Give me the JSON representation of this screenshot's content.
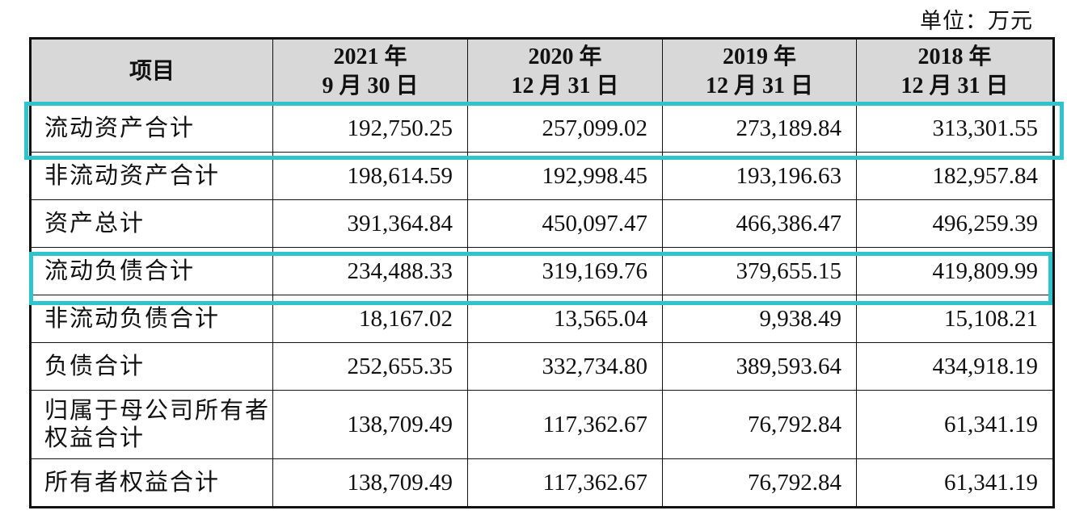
{
  "unit_label": "单位：万元",
  "header": {
    "item": "项目",
    "periods": [
      {
        "year": "2021 年",
        "date": "9 月 30 日"
      },
      {
        "year": "2020 年",
        "date": "12 月 31 日"
      },
      {
        "year": "2019 年",
        "date": "12 月 31 日"
      },
      {
        "year": "2018 年",
        "date": "12 月 31 日"
      }
    ]
  },
  "rows": [
    {
      "label": "流动资产合计",
      "values": [
        "192,750.25",
        "257,099.02",
        "273,189.84",
        "313,301.55"
      ],
      "highlighted": true
    },
    {
      "label": "非流动资产合计",
      "values": [
        "198,614.59",
        "192,998.45",
        "193,196.63",
        "182,957.84"
      ]
    },
    {
      "label": "资产总计",
      "values": [
        "391,364.84",
        "450,097.47",
        "466,386.47",
        "496,259.39"
      ]
    },
    {
      "label": "流动负债合计",
      "values": [
        "234,488.33",
        "319,169.76",
        "379,655.15",
        "419,809.99"
      ],
      "highlighted": true
    },
    {
      "label": "非流动负债合计",
      "values": [
        "18,167.02",
        "13,565.04",
        "9,938.49",
        "15,108.21"
      ]
    },
    {
      "label": "负债合计",
      "values": [
        "252,655.35",
        "332,734.80",
        "389,593.64",
        "434,918.19"
      ]
    },
    {
      "label": "归属于母公司所有者权益合计",
      "values": [
        "138,709.49",
        "117,362.67",
        "76,792.84",
        "61,341.19"
      ]
    },
    {
      "label": "所有者权益合计",
      "values": [
        "138,709.49",
        "117,362.67",
        "76,792.84",
        "61,341.19"
      ]
    }
  ],
  "colors": {
    "highlight_border": "#2fc4cc",
    "header_background": "#d8d8d8"
  }
}
